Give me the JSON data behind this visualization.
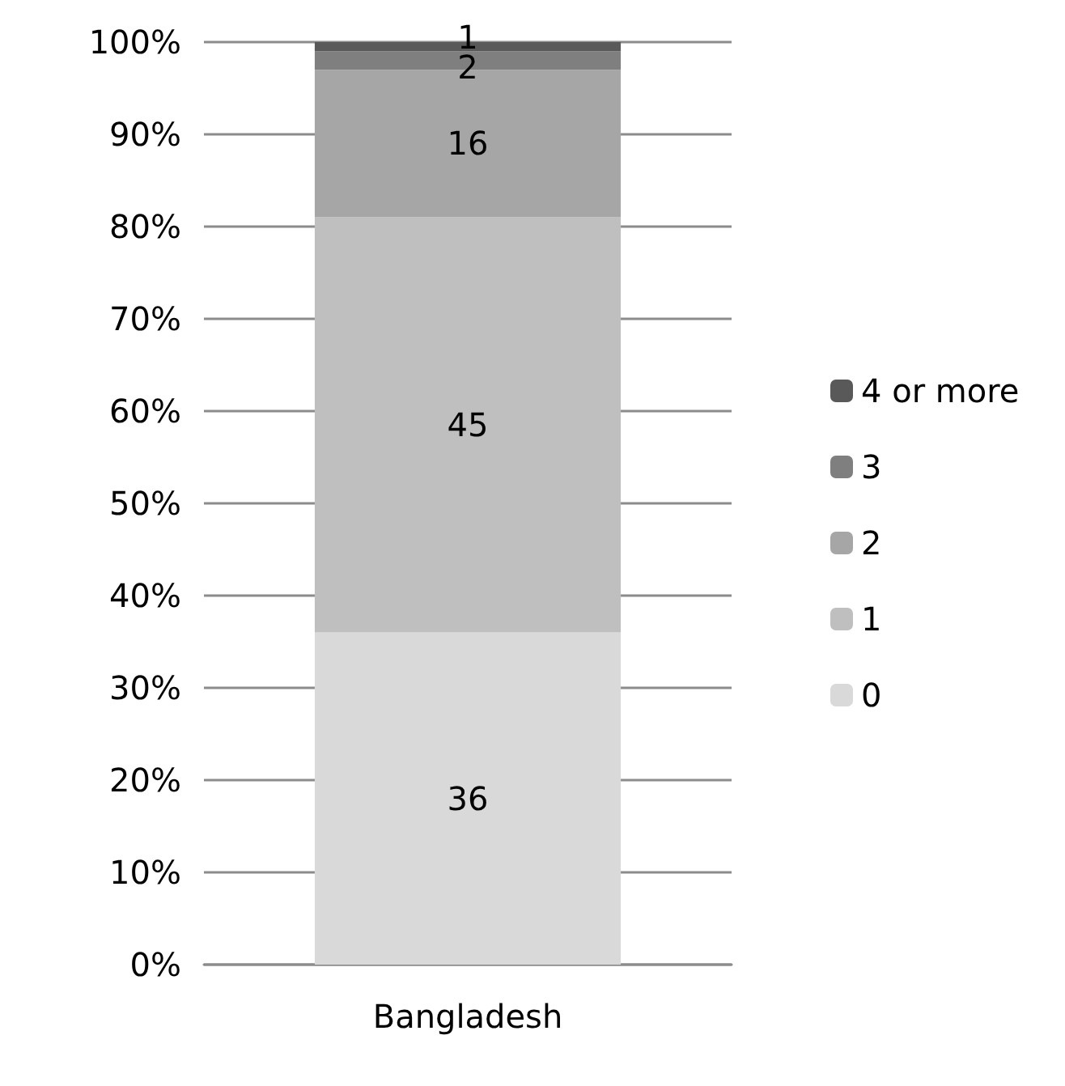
{
  "chart_data": {
    "type": "bar",
    "stacked": true,
    "categories": [
      "Bangladesh"
    ],
    "series": [
      {
        "name": "0",
        "color": "#d9d9d9",
        "values": [
          36
        ]
      },
      {
        "name": "1",
        "color": "#bfbfbf",
        "values": [
          45
        ]
      },
      {
        "name": "2",
        "color": "#a6a6a6",
        "values": [
          16
        ]
      },
      {
        "name": "3",
        "color": "#7f7f7f",
        "values": [
          2
        ]
      },
      {
        "name": "4 or more",
        "color": "#595959",
        "values": [
          1
        ]
      }
    ],
    "ylim": [
      0,
      100
    ],
    "yticks": [
      {
        "value": 0,
        "label": "0%"
      },
      {
        "value": 10,
        "label": "10%"
      },
      {
        "value": 20,
        "label": "20%"
      },
      {
        "value": 30,
        "label": "30%"
      },
      {
        "value": 40,
        "label": "40%"
      },
      {
        "value": 50,
        "label": "50%"
      },
      {
        "value": 60,
        "label": "60%"
      },
      {
        "value": 70,
        "label": "70%"
      },
      {
        "value": 80,
        "label": "80%"
      },
      {
        "value": 90,
        "label": "90%"
      },
      {
        "value": 100,
        "label": "100%"
      }
    ],
    "grid": "y",
    "legend": "right",
    "data_labels": true
  }
}
